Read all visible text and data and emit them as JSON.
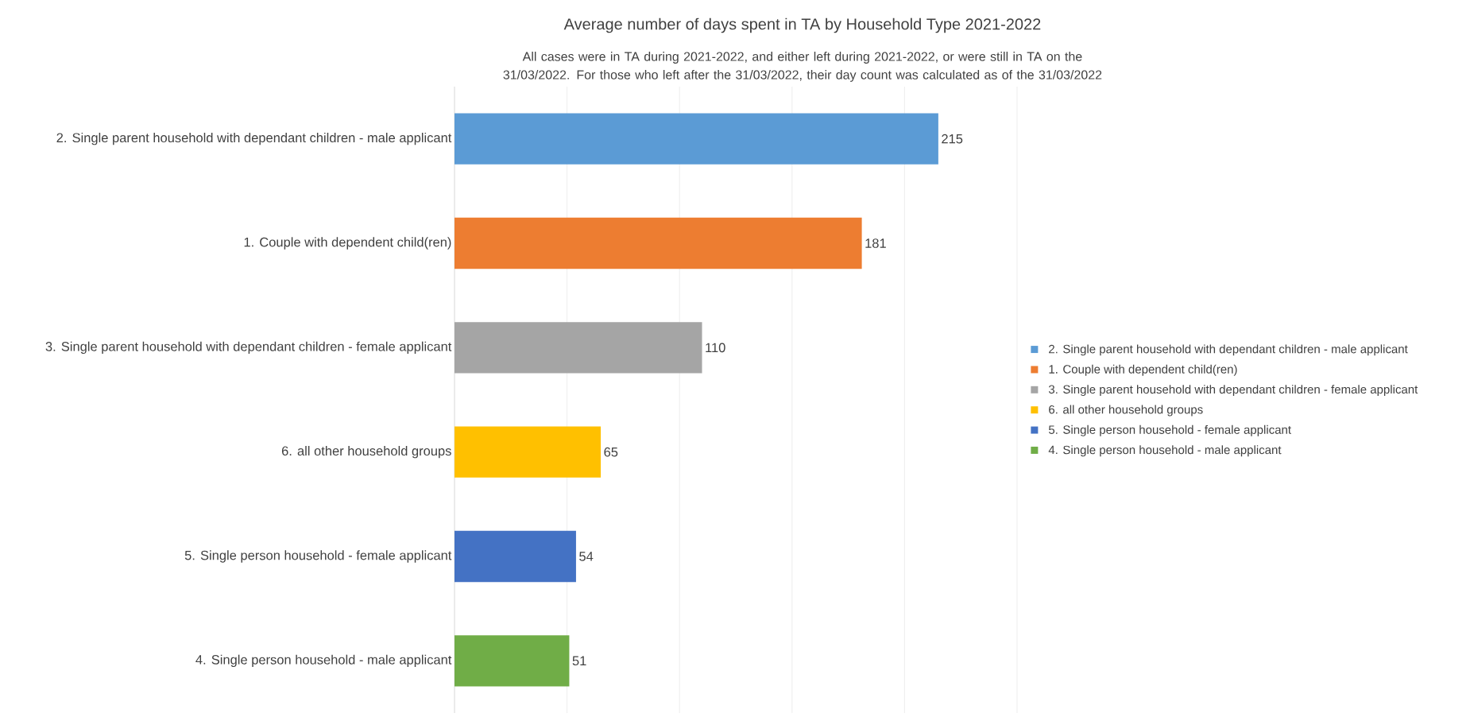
{
  "chart_data": {
    "type": "bar",
    "orientation": "horizontal",
    "title": "Average number of days spent in TA by Household Type 2021-2022",
    "subtitle": "All cases were in TA during 2021-2022, and either left during 2021-2022, or were still in TA on the 31/03/2022. For those who left after the 31/03/2022, their day count was calculated as of the 31/03/2022",
    "categories": [
      "2. Single parent household with dependant children - male applicant",
      "1. Couple with dependent child(ren)",
      "3. Single parent household with dependant children - female applicant",
      "6. all other household groups",
      "5. Single person household - female applicant",
      "4. Single person household - male applicant"
    ],
    "series": [
      {
        "name": "2. Single parent household with dependant children - male applicant",
        "color": "#5b9bd5",
        "values": [
          215,
          null,
          null,
          null,
          null,
          null
        ]
      },
      {
        "name": "1. Couple with dependent child(ren)",
        "color": "#ed7d31",
        "values": [
          null,
          181,
          null,
          null,
          null,
          null
        ]
      },
      {
        "name": "3. Single parent household with dependant children - female applicant",
        "color": "#a5a5a5",
        "values": [
          null,
          null,
          110,
          null,
          null,
          null
        ]
      },
      {
        "name": "6. all other household groups",
        "color": "#ffc000",
        "values": [
          null,
          null,
          null,
          65,
          null,
          null
        ]
      },
      {
        "name": "5. Single person household - female applicant",
        "color": "#4472c4",
        "values": [
          null,
          null,
          null,
          null,
          54,
          null
        ]
      },
      {
        "name": "4. Single person household - male applicant",
        "color": "#70ad47",
        "values": [
          null,
          null,
          null,
          null,
          null,
          51
        ]
      }
    ],
    "xlim": [
      0,
      250
    ],
    "xticks": [
      {
        "value": 0,
        "label": null
      },
      {
        "value": 50,
        "label": null
      },
      {
        "value": 100,
        "label": null
      },
      {
        "value": 150,
        "label": null
      },
      {
        "value": 200,
        "label": null
      },
      {
        "value": 250,
        "label": null
      }
    ],
    "grid": "x",
    "data_labels": true,
    "legend": "right",
    "tick_labels": "y"
  }
}
